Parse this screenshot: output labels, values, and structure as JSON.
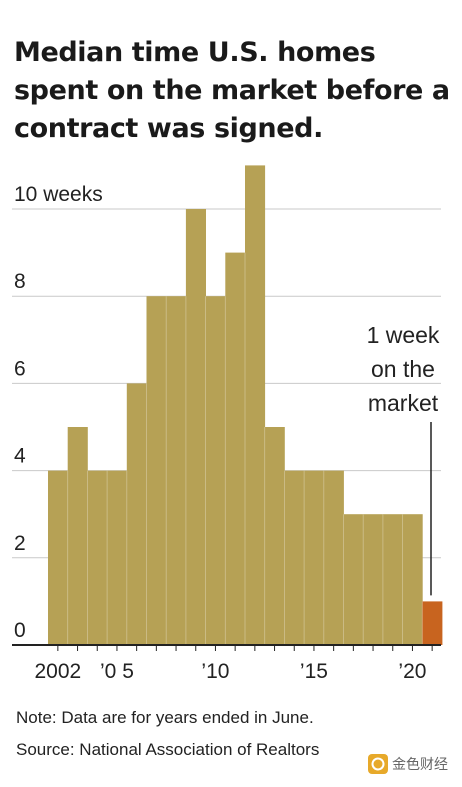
{
  "title": "Median time U.S. homes spent on the market before a contract was signed.",
  "chart_data": {
    "type": "bar",
    "title": "Median time U.S. homes spent on the market before a contract was signed.",
    "xlabel": "",
    "ylabel": "",
    "y_unit": "weeks",
    "ylim": [
      0,
      11
    ],
    "grid": true,
    "x": [
      2002,
      2003,
      2004,
      2005,
      2006,
      2007,
      2008,
      2009,
      2010,
      2011,
      2012,
      2013,
      2014,
      2015,
      2016,
      2017,
      2018,
      2019,
      2020,
      2021
    ],
    "values": [
      4,
      5,
      4,
      4,
      6,
      8,
      8,
      10,
      8,
      9,
      11,
      5,
      4,
      4,
      4,
      3,
      3,
      3,
      3,
      1
    ],
    "bar_color": "#b6a155",
    "highlight_color": "#c8641f",
    "highlight_index": 19,
    "y_ticks": [
      {
        "value": 0,
        "label": "0"
      },
      {
        "value": 2,
        "label": "2"
      },
      {
        "value": 4,
        "label": "4"
      },
      {
        "value": 6,
        "label": "6"
      },
      {
        "value": 8,
        "label": "8"
      },
      {
        "value": 10,
        "label": "10 weeks"
      }
    ],
    "x_ticks": [
      {
        "value": 2002,
        "label": "2002"
      },
      {
        "value": 2005,
        "label": "’0 5"
      },
      {
        "value": 2010,
        "label": "’10"
      },
      {
        "value": 2015,
        "label": "’15"
      },
      {
        "value": 2020,
        "label": "’20"
      }
    ],
    "annotation": {
      "lines": [
        "1 week",
        "on the",
        "market"
      ],
      "target_index": 19
    }
  },
  "note": "Note: Data are for years ended in June.",
  "source": "Source: National Association of Realtors",
  "watermark": "金色财经",
  "watermark_icon": "gold-coin-icon"
}
